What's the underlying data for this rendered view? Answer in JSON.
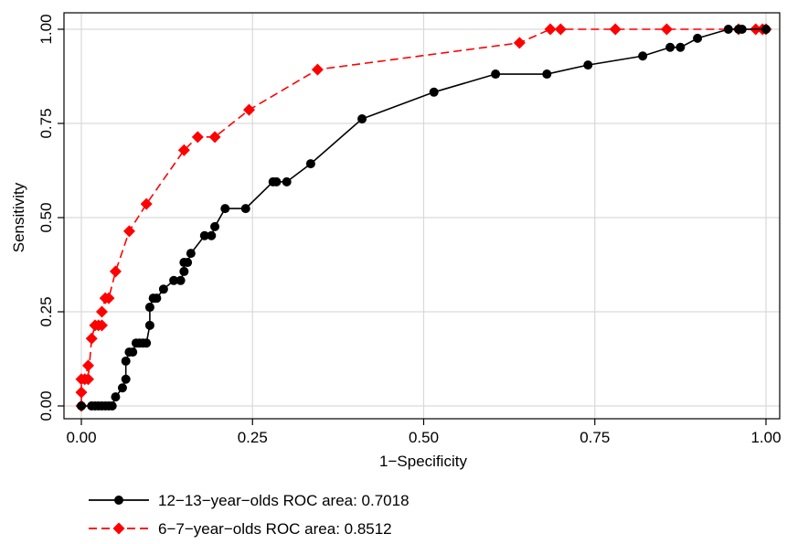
{
  "chart_data": {
    "type": "line",
    "xlabel": "1−Specificity",
    "ylabel": "Sensitivity",
    "xlim": [
      0,
      1
    ],
    "ylim": [
      0,
      1
    ],
    "grid": true,
    "legend_position": "bottom",
    "x_ticks": [
      "0.00",
      "0.25",
      "0.50",
      "0.75",
      "1.00"
    ],
    "y_ticks": [
      "0.00",
      "0.25",
      "0.50",
      "0.75",
      "1.00"
    ],
    "series": [
      {
        "name": "12−13−year−olds ROC area: 0.7018",
        "color": "#000000",
        "marker": "circle",
        "line_style": "solid",
        "x": [
          0.0,
          0.015,
          0.02,
          0.025,
          0.03,
          0.035,
          0.04,
          0.045,
          0.05,
          0.06,
          0.065,
          0.065,
          0.07,
          0.075,
          0.08,
          0.085,
          0.09,
          0.095,
          0.1,
          0.1,
          0.105,
          0.11,
          0.12,
          0.135,
          0.145,
          0.15,
          0.15,
          0.155,
          0.16,
          0.18,
          0.19,
          0.195,
          0.21,
          0.24,
          0.28,
          0.285,
          0.3,
          0.335,
          0.41,
          0.515,
          0.605,
          0.68,
          0.74,
          0.82,
          0.86,
          0.875,
          0.9,
          0.945,
          0.96,
          0.965,
          1.0
        ],
        "y": [
          0.0,
          0.0,
          0.0,
          0.0,
          0.0,
          0.0,
          0.0,
          0.0,
          0.024,
          0.048,
          0.071,
          0.119,
          0.143,
          0.143,
          0.167,
          0.167,
          0.167,
          0.167,
          0.214,
          0.262,
          0.286,
          0.286,
          0.31,
          0.333,
          0.333,
          0.357,
          0.381,
          0.381,
          0.405,
          0.452,
          0.452,
          0.476,
          0.524,
          0.524,
          0.595,
          0.595,
          0.595,
          0.643,
          0.762,
          0.833,
          0.881,
          0.881,
          0.905,
          0.929,
          0.952,
          0.952,
          0.976,
          1.0,
          1.0,
          1.0,
          1.0
        ]
      },
      {
        "name": "6−7−year−olds ROC area: 0.8512",
        "color": "#ff0000",
        "marker": "diamond",
        "line_style": "dashed",
        "x": [
          0.0,
          0.0,
          0.0,
          0.005,
          0.01,
          0.01,
          0.015,
          0.02,
          0.025,
          0.03,
          0.03,
          0.035,
          0.04,
          0.05,
          0.07,
          0.095,
          0.15,
          0.17,
          0.195,
          0.245,
          0.345,
          0.64,
          0.685,
          0.7,
          0.78,
          0.855,
          0.96,
          0.985,
          0.995,
          1.0
        ],
        "y": [
          0.0,
          0.036,
          0.071,
          0.071,
          0.107,
          0.071,
          0.179,
          0.214,
          0.214,
          0.214,
          0.25,
          0.286,
          0.286,
          0.357,
          0.464,
          0.536,
          0.679,
          0.714,
          0.714,
          0.786,
          0.893,
          0.964,
          1.0,
          1.0,
          1.0,
          1.0,
          1.0,
          1.0,
          1.0,
          1.0
        ]
      }
    ]
  }
}
